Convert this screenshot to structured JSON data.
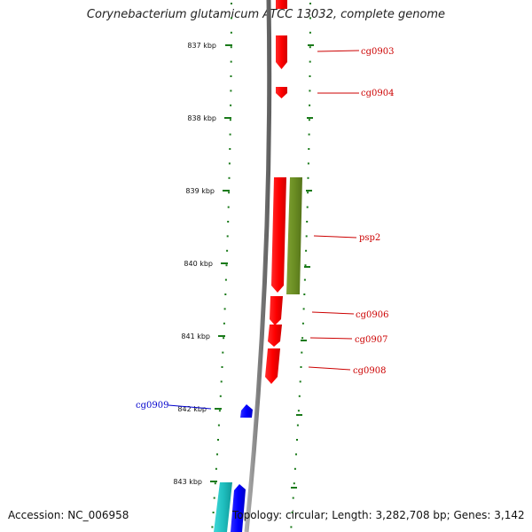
{
  "title": "Corynebacterium glutamicum ATCC 13032, complete genome",
  "accession": "Accession: NC_006958",
  "summary": "Topology: circular; Length: 3,282,708 bp; Genes: 3,142",
  "tick_labels": [
    "837 kbp",
    "838 kbp",
    "839 kbp",
    "840 kbp",
    "841 kbp",
    "842 kbp",
    "843 kbp"
  ],
  "genes": [
    {
      "name": "cg0903",
      "strand": "reverse",
      "color": "#ff0000"
    },
    {
      "name": "cg0904",
      "strand": "reverse",
      "color": "#ff0000"
    },
    {
      "name": "psp2",
      "strand": "reverse",
      "color": "#ff0000"
    },
    {
      "name": "cg0906",
      "strand": "reverse",
      "color": "#ff0000"
    },
    {
      "name": "cg0907",
      "strand": "reverse",
      "color": "#ff0000"
    },
    {
      "name": "cg0908",
      "strand": "reverse",
      "color": "#ff0000"
    },
    {
      "name": "cg0909",
      "strand": "forward",
      "color": "#0000ff"
    }
  ],
  "colors": {
    "backbone": "#808080",
    "ticks": "#1a7a1a",
    "reverse_genes": "#ff0000",
    "forward_genes": "#0000ff",
    "feature_green": "#6b8e23",
    "feature_cyan": "#20c0c0",
    "label_reverse": "#cc0000",
    "label_forward": "#0000cc"
  }
}
